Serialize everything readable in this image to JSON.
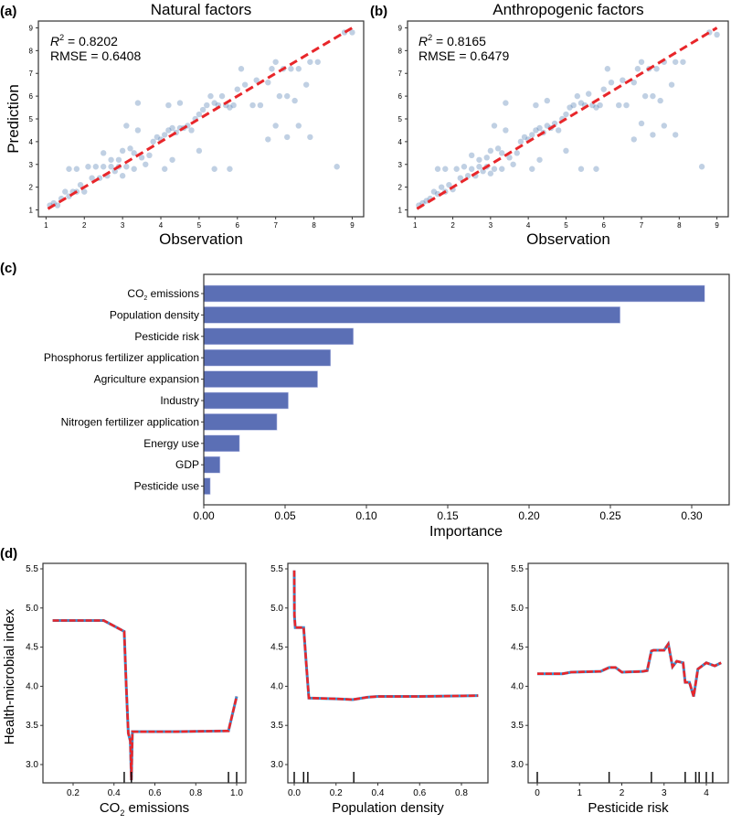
{
  "chart_data": [
    {
      "panel_label": "(a)",
      "type": "scatter",
      "title": "Natural factors",
      "xlabel": "Observation",
      "ylabel": "Prediction",
      "xlim": [
        0.8,
        9.3
      ],
      "ylim": [
        0.7,
        9.3
      ],
      "xticks": [
        "1",
        "2",
        "3",
        "4",
        "5",
        "6",
        "7",
        "8",
        "9"
      ],
      "yticks": [
        "1",
        "2",
        "3",
        "4",
        "5",
        "6",
        "7",
        "8",
        "9"
      ],
      "annotation_r2_label": "R",
      "annotation_r2_value": " = 0.8202",
      "annotation_rmse": "RMSE = 0.6408",
      "point_color": "#4a78b0",
      "line_color": "#e8262a",
      "reference_line": [
        [
          1.05,
          1.05
        ],
        [
          9.0,
          9.0
        ]
      ],
      "points": [
        [
          1.1,
          1.2
        ],
        [
          1.2,
          1.3
        ],
        [
          1.3,
          1.2
        ],
        [
          1.4,
          1.5
        ],
        [
          1.5,
          1.8
        ],
        [
          1.6,
          1.6
        ],
        [
          1.7,
          1.8
        ],
        [
          1.8,
          1.8
        ],
        [
          1.9,
          2.1
        ],
        [
          2.0,
          1.8
        ],
        [
          1.6,
          2.8
        ],
        [
          1.8,
          2.8
        ],
        [
          2.1,
          2.9
        ],
        [
          2.3,
          2.9
        ],
        [
          2.5,
          2.9
        ],
        [
          2.7,
          2.9
        ],
        [
          2.9,
          2.9
        ],
        [
          3.1,
          2.9
        ],
        [
          3.3,
          2.8
        ],
        [
          2.2,
          2.4
        ],
        [
          2.4,
          2.4
        ],
        [
          2.6,
          2.5
        ],
        [
          2.8,
          2.7
        ],
        [
          3.0,
          2.5
        ],
        [
          2.5,
          3.5
        ],
        [
          2.7,
          3.2
        ],
        [
          2.9,
          3.2
        ],
        [
          3.0,
          3.6
        ],
        [
          3.2,
          3.7
        ],
        [
          3.3,
          3.5
        ],
        [
          3.5,
          3.3
        ],
        [
          3.6,
          3.0
        ],
        [
          3.7,
          3.4
        ],
        [
          3.8,
          4.0
        ],
        [
          3.9,
          4.2
        ],
        [
          4.0,
          4.1
        ],
        [
          4.1,
          4.3
        ],
        [
          4.2,
          4.5
        ],
        [
          4.3,
          4.6
        ],
        [
          4.4,
          4.4
        ],
        [
          4.5,
          4.6
        ],
        [
          4.6,
          4.6
        ],
        [
          4.7,
          4.7
        ],
        [
          4.8,
          4.5
        ],
        [
          4.9,
          5.0
        ],
        [
          5.0,
          5.2
        ],
        [
          5.1,
          5.4
        ],
        [
          5.2,
          5.6
        ],
        [
          5.3,
          6.0
        ],
        [
          5.4,
          5.7
        ],
        [
          5.5,
          5.6
        ],
        [
          5.6,
          6.0
        ],
        [
          5.7,
          5.6
        ],
        [
          5.8,
          5.5
        ],
        [
          5.9,
          5.6
        ],
        [
          6.0,
          6.3
        ],
        [
          6.2,
          6.5
        ],
        [
          6.1,
          7.2
        ],
        [
          6.4,
          5.6
        ],
        [
          6.6,
          5.6
        ],
        [
          6.5,
          6.7
        ],
        [
          6.8,
          6.6
        ],
        [
          6.9,
          7.2
        ],
        [
          7.0,
          7.5
        ],
        [
          7.2,
          7.2
        ],
        [
          7.4,
          7.2
        ],
        [
          7.6,
          7.2
        ],
        [
          7.1,
          6.0
        ],
        [
          7.3,
          6.0
        ],
        [
          7.5,
          5.8
        ],
        [
          7.9,
          7.5
        ],
        [
          8.1,
          7.5
        ],
        [
          7.8,
          6.5
        ],
        [
          7.9,
          4.2
        ],
        [
          7.3,
          4.2
        ],
        [
          6.8,
          4.1
        ],
        [
          5.4,
          2.8
        ],
        [
          5.8,
          2.8
        ],
        [
          4.1,
          2.8
        ],
        [
          3.4,
          5.7
        ],
        [
          3.1,
          4.7
        ],
        [
          8.6,
          2.9
        ],
        [
          8.8,
          8.8
        ],
        [
          9.0,
          8.8
        ],
        [
          4.3,
          3.2
        ],
        [
          5.0,
          3.6
        ],
        [
          3.4,
          4.5
        ],
        [
          7.6,
          4.7
        ],
        [
          7.0,
          4.7
        ],
        [
          4.5,
          5.7
        ],
        [
          4.2,
          5.6
        ]
      ]
    },
    {
      "panel_label": "(b)",
      "type": "scatter",
      "title": "Anthropogenic factors",
      "xlabel": "Observation",
      "ylabel": "",
      "xlim": [
        0.8,
        9.3
      ],
      "ylim": [
        0.7,
        9.3
      ],
      "xticks": [
        "1",
        "2",
        "3",
        "4",
        "5",
        "6",
        "7",
        "8",
        "9"
      ],
      "yticks": [
        "1",
        "2",
        "3",
        "4",
        "5",
        "6",
        "7",
        "8",
        "9"
      ],
      "annotation_r2_label": "R",
      "annotation_r2_value": " = 0.8165",
      "annotation_rmse": "RMSE = 0.6479",
      "point_color": "#4a78b0",
      "line_color": "#e8262a",
      "reference_line": [
        [
          1.05,
          1.05
        ],
        [
          9.0,
          9.0
        ]
      ],
      "points": [
        [
          1.1,
          1.2
        ],
        [
          1.2,
          1.3
        ],
        [
          1.3,
          1.4
        ],
        [
          1.4,
          1.5
        ],
        [
          1.5,
          1.8
        ],
        [
          1.6,
          1.7
        ],
        [
          1.7,
          2.0
        ],
        [
          1.8,
          1.8
        ],
        [
          1.9,
          2.1
        ],
        [
          2.0,
          1.9
        ],
        [
          1.6,
          2.8
        ],
        [
          1.8,
          2.8
        ],
        [
          2.1,
          2.8
        ],
        [
          2.3,
          2.9
        ],
        [
          2.5,
          2.8
        ],
        [
          2.7,
          2.9
        ],
        [
          2.9,
          2.9
        ],
        [
          3.1,
          2.8
        ],
        [
          3.3,
          2.8
        ],
        [
          2.2,
          2.4
        ],
        [
          2.4,
          2.5
        ],
        [
          2.6,
          2.5
        ],
        [
          2.8,
          2.7
        ],
        [
          3.0,
          2.6
        ],
        [
          2.5,
          3.4
        ],
        [
          2.7,
          3.2
        ],
        [
          2.9,
          3.3
        ],
        [
          3.0,
          3.6
        ],
        [
          3.2,
          3.7
        ],
        [
          3.3,
          3.5
        ],
        [
          3.5,
          3.3
        ],
        [
          3.6,
          3.0
        ],
        [
          3.7,
          3.5
        ],
        [
          3.8,
          4.0
        ],
        [
          3.9,
          4.2
        ],
        [
          4.0,
          4.1
        ],
        [
          4.1,
          4.3
        ],
        [
          4.2,
          4.5
        ],
        [
          4.3,
          4.6
        ],
        [
          4.4,
          4.4
        ],
        [
          4.5,
          4.7
        ],
        [
          4.6,
          4.6
        ],
        [
          4.7,
          4.8
        ],
        [
          4.8,
          4.5
        ],
        [
          4.9,
          5.0
        ],
        [
          5.0,
          5.2
        ],
        [
          5.1,
          5.5
        ],
        [
          5.2,
          5.6
        ],
        [
          5.3,
          6.0
        ],
        [
          5.4,
          5.7
        ],
        [
          5.5,
          5.6
        ],
        [
          5.6,
          6.1
        ],
        [
          5.7,
          5.6
        ],
        [
          5.8,
          5.5
        ],
        [
          5.9,
          5.6
        ],
        [
          6.0,
          6.3
        ],
        [
          6.2,
          6.6
        ],
        [
          6.1,
          7.2
        ],
        [
          6.4,
          5.6
        ],
        [
          6.6,
          5.6
        ],
        [
          6.5,
          6.7
        ],
        [
          6.8,
          6.6
        ],
        [
          6.9,
          7.2
        ],
        [
          7.0,
          7.5
        ],
        [
          7.2,
          7.2
        ],
        [
          7.4,
          7.2
        ],
        [
          7.6,
          7.5
        ],
        [
          7.1,
          6.0
        ],
        [
          7.3,
          6.0
        ],
        [
          7.5,
          5.8
        ],
        [
          7.9,
          7.5
        ],
        [
          8.1,
          7.5
        ],
        [
          7.8,
          6.5
        ],
        [
          7.9,
          4.3
        ],
        [
          7.3,
          4.3
        ],
        [
          6.8,
          4.1
        ],
        [
          5.4,
          2.8
        ],
        [
          5.8,
          2.8
        ],
        [
          4.1,
          2.8
        ],
        [
          3.4,
          5.7
        ],
        [
          3.1,
          4.7
        ],
        [
          8.6,
          2.9
        ],
        [
          8.8,
          8.8
        ],
        [
          9.0,
          8.7
        ],
        [
          4.3,
          3.2
        ],
        [
          5.0,
          3.6
        ],
        [
          3.4,
          4.5
        ],
        [
          7.6,
          4.7
        ],
        [
          7.0,
          4.8
        ],
        [
          4.5,
          5.8
        ],
        [
          4.2,
          5.6
        ]
      ]
    },
    {
      "panel_label": "(c)",
      "type": "bar",
      "orientation": "horizontal",
      "xlabel": "Importance",
      "xlim": [
        0,
        0.32
      ],
      "xticks": [
        "0.00",
        "0.05",
        "0.10",
        "0.15",
        "0.20",
        "0.25",
        "0.30"
      ],
      "bar_color": "#5b6fb5",
      "categories": [
        "CO2 emissions",
        "Population density",
        "Pesticide risk",
        "Phosphorus fertilizer application",
        "Agriculture expansion",
        "Industry",
        "Nitrogen fertilizer application",
        "Energy use",
        "GDP",
        "Pesticide use"
      ],
      "values": [
        0.308,
        0.256,
        0.092,
        0.078,
        0.07,
        0.052,
        0.045,
        0.022,
        0.01,
        0.004
      ]
    },
    {
      "panel_label": "(d)",
      "type": "line",
      "ylabel": "Health-microbial index",
      "ylim": [
        2.78,
        5.57
      ],
      "yticks": [
        "3.0",
        "3.5",
        "4.0",
        "4.5",
        "5.0",
        "5.5"
      ],
      "line_color": "#e8262a",
      "line_under_color": "#3a8fd0",
      "panels": [
        {
          "xlabel": "CO2 emissions",
          "xlim": [
            0.05,
            1.03
          ],
          "xticks": [
            "0.2",
            "0.4",
            "0.6",
            "0.8",
            "1.0"
          ],
          "x": [
            0.1,
            0.35,
            0.45,
            0.46,
            0.47,
            0.48,
            0.485,
            0.49,
            0.5,
            0.7,
            0.96,
            1.0
          ],
          "y": [
            4.84,
            4.84,
            4.7,
            4.0,
            3.4,
            3.3,
            2.8,
            3.42,
            3.42,
            3.42,
            3.43,
            3.87
          ],
          "rug": [
            0.45,
            0.485,
            0.96,
            1.0
          ]
        },
        {
          "xlabel": "Population density",
          "xlim": [
            -0.03,
            0.91
          ],
          "xticks": [
            "0.0",
            "0.2",
            "0.4",
            "0.6",
            "0.8"
          ],
          "x": [
            0.0,
            0.001,
            0.005,
            0.045,
            0.06,
            0.07,
            0.2,
            0.28,
            0.35,
            0.4,
            0.6,
            0.88
          ],
          "y": [
            5.48,
            4.9,
            4.75,
            4.75,
            4.2,
            3.85,
            3.84,
            3.83,
            3.86,
            3.87,
            3.87,
            3.88
          ],
          "rug": [
            0.0,
            0.045,
            0.065,
            0.285
          ]
        },
        {
          "xlabel": "Pesticide risk",
          "xlim": [
            -0.2,
            4.5
          ],
          "xticks": [
            "0",
            "1",
            "2",
            "3",
            "4"
          ],
          "x": [
            0.0,
            0.6,
            0.8,
            1.5,
            1.7,
            1.85,
            2.0,
            2.5,
            2.6,
            2.7,
            2.75,
            3.0,
            3.1,
            3.2,
            3.3,
            3.45,
            3.5,
            3.6,
            3.7,
            3.8,
            4.0,
            4.2,
            4.35
          ],
          "y": [
            4.16,
            4.16,
            4.18,
            4.19,
            4.24,
            4.24,
            4.18,
            4.19,
            4.2,
            4.45,
            4.46,
            4.46,
            4.54,
            4.25,
            4.32,
            4.3,
            4.05,
            4.05,
            3.87,
            4.22,
            4.3,
            4.26,
            4.3
          ],
          "rug": [
            0.0,
            1.7,
            2.7,
            3.5,
            3.75,
            3.83,
            4.0,
            4.15
          ]
        }
      ]
    }
  ]
}
